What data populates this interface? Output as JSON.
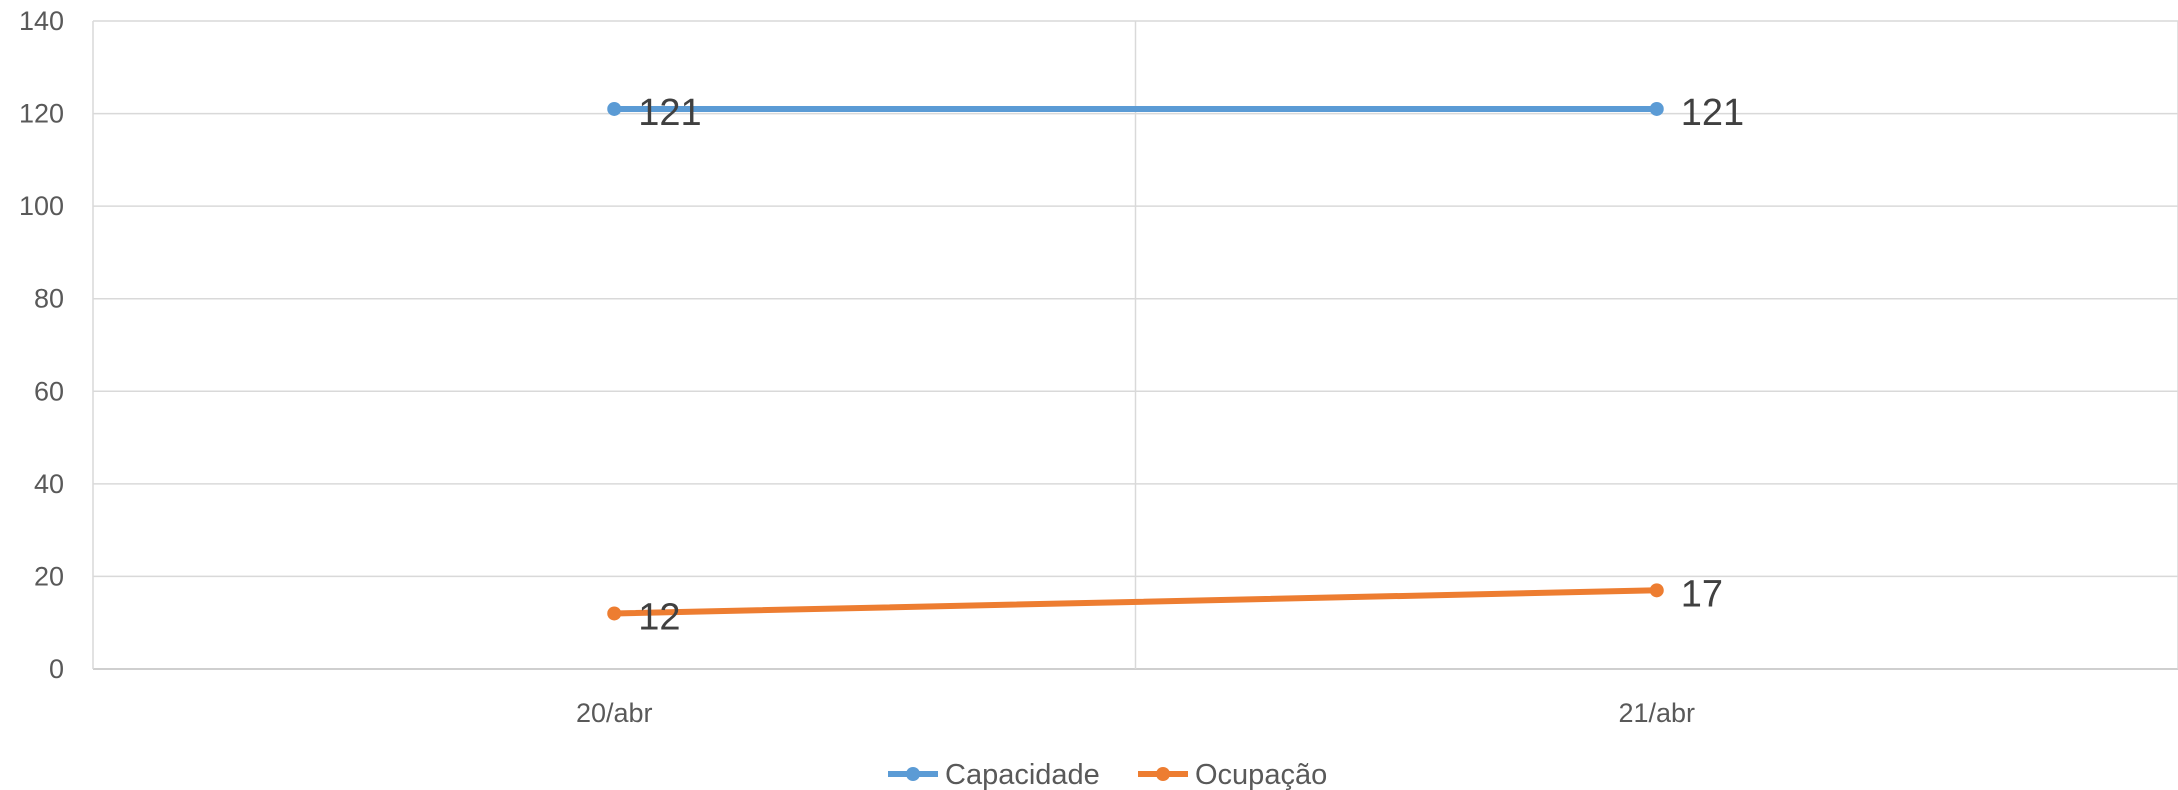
{
  "chart_data": {
    "type": "line",
    "categories": [
      "20/abr",
      "21/abr"
    ],
    "series": [
      {
        "name": "Capacidade",
        "values": [
          121,
          121
        ],
        "color": "#5B9BD5"
      },
      {
        "name": "Ocupação",
        "values": [
          12,
          17
        ],
        "color": "#ED7D31"
      }
    ],
    "ylim": [
      0,
      140
    ],
    "yticks": [
      0,
      20,
      40,
      60,
      80,
      100,
      120,
      140
    ],
    "grid": true,
    "legend": "bottom",
    "data_labels": true
  }
}
